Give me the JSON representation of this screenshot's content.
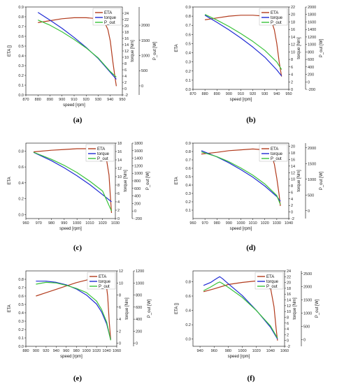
{
  "figure": {
    "colors": {
      "eta": "#b23b1d",
      "torque": "#1f2bd4",
      "p_out": "#39c23a"
    },
    "legend": [
      "ETA",
      "torque",
      "P_out"
    ]
  },
  "chart_data": [
    {
      "type": "line",
      "caption": "(a)",
      "xlabel": "speed [rpm]",
      "ylabel_left": "ETA []",
      "ylabel_right1": "torque [Nm]",
      "ylabel_right2": "P_out [W]",
      "xlim": [
        870,
        950
      ],
      "xticks": [
        870,
        880,
        890,
        900,
        910,
        920,
        930,
        940,
        950
      ],
      "ylim_left": [
        0,
        0.9
      ],
      "yticks_left": [
        0.0,
        0.1,
        0.2,
        0.3,
        0.4,
        0.5,
        0.6,
        0.7,
        0.8,
        0.9
      ],
      "ylim_torque": [
        -2,
        26
      ],
      "yticks_torque": [
        -2,
        0,
        2,
        4,
        6,
        8,
        10,
        12,
        14,
        16,
        18,
        20,
        22,
        24
      ],
      "ylim_power": [
        -300,
        2600
      ],
      "yticks_power": [
        0,
        500,
        1000,
        1500,
        2000
      ],
      "legend_position": "top-right",
      "grid": false,
      "series": [
        {
          "name": "ETA",
          "axis": "left",
          "x": [
            880,
            890,
            900,
            910,
            920,
            930,
            935,
            938,
            940,
            942,
            944,
            945
          ],
          "y": [
            0.74,
            0.76,
            0.78,
            0.79,
            0.79,
            0.78,
            0.75,
            0.67,
            0.55,
            0.35,
            0.17,
            0.09
          ]
        },
        {
          "name": "torque",
          "axis": "torque",
          "x": [
            880,
            890,
            900,
            910,
            920,
            930,
            940,
            945
          ],
          "y": [
            24.3,
            21.8,
            19.2,
            16.3,
            13.1,
            9.6,
            5.2,
            3.0
          ]
        },
        {
          "name": "P_out",
          "axis": "power",
          "x": [
            880,
            890,
            900,
            910,
            920,
            930,
            940,
            945
          ],
          "y": [
            2170,
            2000,
            1780,
            1530,
            1250,
            920,
            470,
            290
          ]
        }
      ]
    },
    {
      "type": "line",
      "caption": "(b)",
      "xlabel": "speed [rpm]",
      "ylabel_left": "ETA",
      "ylabel_right1": "torque [Nm]",
      "ylabel_right2": "P_out [W]",
      "xlim": [
        870,
        950
      ],
      "xticks": [
        870,
        880,
        890,
        900,
        910,
        920,
        930,
        940,
        950
      ],
      "ylim_left": [
        0,
        0.9
      ],
      "yticks_left": [
        0.0,
        0.1,
        0.2,
        0.3,
        0.4,
        0.5,
        0.6,
        0.7,
        0.8,
        0.9
      ],
      "ylim_torque": [
        0,
        22
      ],
      "yticks_torque": [
        0,
        2,
        4,
        6,
        8,
        10,
        12,
        14,
        16,
        18,
        20,
        22
      ],
      "ylim_power": [
        -200,
        2000
      ],
      "yticks_power": [
        -200,
        0,
        200,
        400,
        600,
        800,
        1000,
        1200,
        1400,
        1600,
        1800,
        2000
      ],
      "legend_position": "top-right",
      "grid": false,
      "series": [
        {
          "name": "ETA",
          "axis": "left",
          "x": [
            880,
            890,
            900,
            910,
            920,
            930,
            935,
            938,
            940,
            942,
            944
          ],
          "y": [
            0.76,
            0.78,
            0.8,
            0.81,
            0.81,
            0.8,
            0.77,
            0.65,
            0.5,
            0.3,
            0.14
          ]
        },
        {
          "name": "torque",
          "axis": "torque",
          "x": [
            880,
            890,
            900,
            910,
            920,
            930,
            940,
            944
          ],
          "y": [
            19.8,
            17.9,
            15.9,
            13.7,
            11.3,
            8.6,
            5.2,
            3.6
          ]
        },
        {
          "name": "P_out",
          "axis": "power",
          "x": [
            880,
            890,
            900,
            910,
            920,
            930,
            940,
            944
          ],
          "y": [
            1800,
            1650,
            1480,
            1290,
            1080,
            840,
            530,
            330
          ]
        }
      ]
    },
    {
      "type": "line",
      "caption": "(c)",
      "xlabel": "speed [rpm]",
      "ylabel_left": "ETA",
      "ylabel_right1": "torque [Nm]",
      "ylabel_right2": "P_out [W]",
      "xlim": [
        960,
        1030
      ],
      "xticks": [
        960,
        970,
        980,
        990,
        1000,
        1010,
        1020,
        1030
      ],
      "ylim_left": [
        -0.05,
        0.9
      ],
      "yticks_left": [
        0.0,
        0.2,
        0.4,
        0.6,
        0.8
      ],
      "ylim_torque": [
        0,
        18
      ],
      "yticks_torque": [
        0,
        2,
        4,
        6,
        8,
        10,
        12,
        14,
        16,
        18
      ],
      "ylim_power": [
        -200,
        1800
      ],
      "yticks_power": [
        -200,
        0,
        200,
        400,
        600,
        800,
        1000,
        1200,
        1400,
        1600,
        1800
      ],
      "legend_position": "top-right",
      "grid": false,
      "series": [
        {
          "name": "ETA",
          "axis": "left",
          "x": [
            966,
            980,
            990,
            1000,
            1010,
            1015,
            1020,
            1023,
            1025,
            1026,
            1027
          ],
          "y": [
            0.79,
            0.81,
            0.82,
            0.83,
            0.83,
            0.82,
            0.79,
            0.7,
            0.5,
            0.25,
            0.02
          ]
        },
        {
          "name": "torque",
          "axis": "torque",
          "x": [
            966,
            980,
            990,
            1000,
            1010,
            1020,
            1027
          ],
          "y": [
            15.8,
            13.8,
            12.1,
            10.2,
            8.1,
            5.7,
            4.0
          ]
        },
        {
          "name": "P_out",
          "axis": "power",
          "x": [
            966,
            980,
            990,
            1000,
            1010,
            1020,
            1027
          ],
          "y": [
            1560,
            1370,
            1210,
            1020,
            790,
            530,
            0
          ]
        }
      ]
    },
    {
      "type": "line",
      "caption": "(d)",
      "xlabel": "speed [rpm]",
      "ylabel_left": "ETA",
      "ylabel_right1": "torque [Nm]",
      "ylabel_right2": "P_out [W]",
      "xlim": [
        960,
        1040
      ],
      "xticks": [
        960,
        970,
        980,
        990,
        1000,
        1010,
        1020,
        1030,
        1040
      ],
      "ylim_left": [
        0,
        0.9
      ],
      "yticks_left": [
        0.1,
        0.2,
        0.3,
        0.4,
        0.5,
        0.6,
        0.7,
        0.8,
        0.9
      ],
      "ylim_torque": [
        -2,
        21
      ],
      "yticks_torque": [
        -2,
        0,
        2,
        4,
        6,
        8,
        10,
        12,
        14,
        16,
        18,
        20
      ],
      "ylim_power": [
        -250,
        2150
      ],
      "yticks_power": [
        0,
        500,
        1000,
        1500,
        2000
      ],
      "legend_position": "top-right",
      "grid": false,
      "series": [
        {
          "name": "ETA",
          "axis": "left",
          "x": [
            967,
            980,
            990,
            1000,
            1010,
            1020,
            1025,
            1028,
            1030,
            1032,
            1033
          ],
          "y": [
            0.77,
            0.79,
            0.81,
            0.82,
            0.83,
            0.82,
            0.78,
            0.65,
            0.48,
            0.28,
            0.15
          ]
        },
        {
          "name": "torque",
          "axis": "torque",
          "x": [
            967,
            980,
            990,
            1000,
            1010,
            1020,
            1030,
            1033
          ],
          "y": [
            18.7,
            16.8,
            15.0,
            12.9,
            10.6,
            7.9,
            4.7,
            3.3
          ]
        },
        {
          "name": "P_out",
          "axis": "power",
          "x": [
            967,
            980,
            990,
            1000,
            1010,
            1020,
            1030,
            1033
          ],
          "y": [
            1870,
            1720,
            1560,
            1360,
            1130,
            850,
            480,
            200
          ]
        }
      ]
    },
    {
      "type": "line",
      "caption": "(e)",
      "xlabel": "speed [rpm]",
      "ylabel_left": "ETA",
      "ylabel_right1": "torque [Nm]",
      "ylabel_right2": "P_out [W]",
      "xlim": [
        880,
        1060
      ],
      "xticks": [
        880,
        900,
        920,
        940,
        960,
        980,
        1000,
        1020,
        1040,
        1060
      ],
      "ylim_left": [
        0,
        0.9
      ],
      "yticks_left": [
        0.0,
        0.1,
        0.2,
        0.3,
        0.4,
        0.5,
        0.6,
        0.7,
        0.8
      ],
      "ylim_torque": [
        -0.5,
        12
      ],
      "yticks_torque": [
        0,
        2,
        4,
        6,
        8,
        10,
        12
      ],
      "ylim_power": [
        -50,
        1200
      ],
      "yticks_power": [
        0,
        200,
        400,
        600,
        800,
        1000,
        1200
      ],
      "legend_position": "top-right",
      "grid": false,
      "series": [
        {
          "name": "ETA",
          "axis": "left",
          "x": [
            900,
            920,
            940,
            960,
            980,
            1000,
            1020,
            1030,
            1038,
            1042,
            1045,
            1048
          ],
          "y": [
            0.6,
            0.64,
            0.68,
            0.72,
            0.76,
            0.79,
            0.83,
            0.84,
            0.8,
            0.6,
            0.3,
            0.08
          ]
        },
        {
          "name": "torque",
          "axis": "torque",
          "x": [
            900,
            920,
            940,
            960,
            980,
            1000,
            1020,
            1030,
            1040,
            1048
          ],
          "y": [
            10.3,
            10.3,
            10.1,
            9.7,
            9.0,
            8.0,
            6.5,
            5.2,
            3.2,
            0.6
          ]
        },
        {
          "name": "P_out",
          "axis": "power",
          "x": [
            900,
            920,
            940,
            960,
            980,
            1000,
            1020,
            1030,
            1040,
            1048
          ],
          "y": [
            980,
            1010,
            1000,
            960,
            910,
            840,
            700,
            560,
            350,
            50
          ]
        }
      ]
    },
    {
      "type": "line",
      "caption": "(f)",
      "xlabel": "speed [rpm]",
      "ylabel_left": "ETA []",
      "ylabel_right1": "torque [Nm]",
      "ylabel_right2": "P_out [W]",
      "xlim": [
        930,
        1060
      ],
      "xticks": [
        940,
        960,
        980,
        1000,
        1020,
        1040,
        1060
      ],
      "ylim_left": [
        -0.1,
        0.95
      ],
      "yticks_left": [
        0.0,
        0.2,
        0.4,
        0.6,
        0.8
      ],
      "ylim_torque": [
        -2,
        24
      ],
      "yticks_torque": [
        -2,
        0,
        2,
        4,
        6,
        8,
        10,
        12,
        14,
        16,
        18,
        20,
        22,
        24
      ],
      "ylim_power": [
        -250,
        2600
      ],
      "yticks_power": [
        0,
        500,
        1000,
        1500,
        2000,
        2500
      ],
      "legend_position": "top-right",
      "grid": false,
      "series": [
        {
          "name": "ETA",
          "axis": "left",
          "x": [
            945,
            960,
            980,
            1000,
            1020,
            1030,
            1040,
            1045,
            1048,
            1050
          ],
          "y": [
            0.66,
            0.7,
            0.76,
            0.79,
            0.81,
            0.8,
            0.72,
            0.45,
            0.15,
            -0.02
          ]
        },
        {
          "name": "torque",
          "axis": "torque",
          "x": [
            945,
            955,
            960,
            965,
            968,
            972,
            980,
            1000,
            1020,
            1040,
            1050
          ],
          "y": [
            19.0,
            20.0,
            20.8,
            21.6,
            22.0,
            21.3,
            19.6,
            15.5,
            10.4,
            4.6,
            0.5
          ]
        },
        {
          "name": "P_out",
          "axis": "power",
          "x": [
            945,
            955,
            960,
            965,
            968,
            972,
            980,
            1000,
            1020,
            1040,
            1050
          ],
          "y": [
            1850,
            1990,
            2070,
            2150,
            2180,
            2120,
            1980,
            1600,
            1100,
            520,
            60
          ]
        }
      ]
    }
  ]
}
